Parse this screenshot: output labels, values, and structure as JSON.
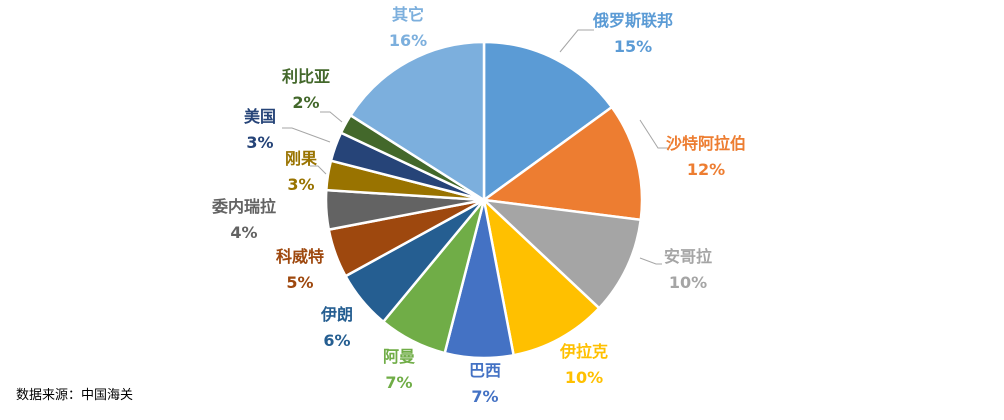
{
  "source_note": "数据来源：中国海关",
  "chart_data": {
    "type": "pie",
    "start_angle_deg": 0,
    "direction": "clockwise",
    "slices": [
      {
        "name": "俄罗斯联邦",
        "value": 15,
        "label": "15%",
        "color": "#5B9BD5"
      },
      {
        "name": "沙特阿拉伯",
        "value": 12,
        "label": "12%",
        "color": "#ED7D31"
      },
      {
        "name": "安哥拉",
        "value": 10,
        "label": "10%",
        "color": "#A5A5A5"
      },
      {
        "name": "伊拉克",
        "value": 10,
        "label": "10%",
        "color": "#FFC000"
      },
      {
        "name": "巴西",
        "value": 7,
        "label": "7%",
        "color": "#4472C4"
      },
      {
        "name": "阿曼",
        "value": 7,
        "label": "7%",
        "color": "#70AD47"
      },
      {
        "name": "伊朗",
        "value": 6,
        "label": "6%",
        "color": "#255E91"
      },
      {
        "name": "科威特",
        "value": 5,
        "label": "5%",
        "color": "#9E480E"
      },
      {
        "name": "委内瑞拉",
        "value": 4,
        "label": "4%",
        "color": "#636363"
      },
      {
        "name": "刚果",
        "value": 3,
        "label": "3%",
        "color": "#997300"
      },
      {
        "name": "美国",
        "value": 3,
        "label": "3%",
        "color": "#264478"
      },
      {
        "name": "利比亚",
        "value": 2,
        "label": "2%",
        "color": "#43682B"
      },
      {
        "name": "其它",
        "value": 16,
        "label": "16%",
        "color": "#7CAFDD"
      }
    ]
  }
}
